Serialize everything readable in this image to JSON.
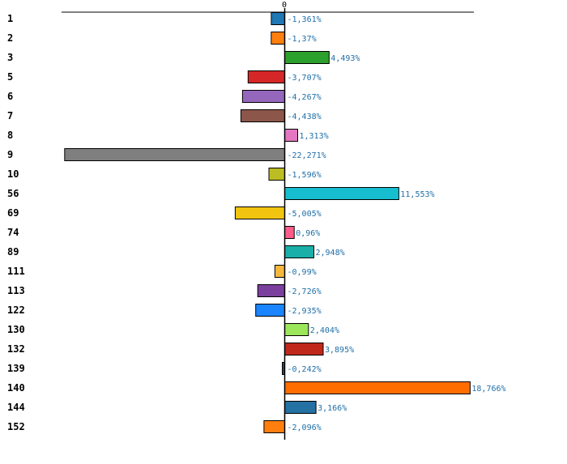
{
  "chart_data": {
    "type": "bar",
    "orientation": "horizontal",
    "zero_tick_label": "0",
    "xlim": [
      -23.5,
      19.7
    ],
    "grid": false,
    "categories": [
      "1",
      "2",
      "3",
      "5",
      "6",
      "7",
      "8",
      "9",
      "10",
      "56",
      "69",
      "74",
      "89",
      "111",
      "113",
      "122",
      "130",
      "132",
      "139",
      "140",
      "144",
      "152"
    ],
    "values": [
      -1.361,
      -1.37,
      4.493,
      -3.707,
      -4.267,
      -4.438,
      1.313,
      -22.271,
      -1.596,
      11.553,
      -5.005,
      0.96,
      2.948,
      -0.99,
      -2.726,
      -2.935,
      2.404,
      3.895,
      -0.242,
      18.766,
      3.166,
      -2.096
    ],
    "value_labels": [
      "-1,361%",
      "-1,37%",
      "4,493%",
      "-3,707%",
      "-4,267%",
      "-4,438%",
      "1,313%",
      "-22,271%",
      "-1,596%",
      "11,553%",
      "-5,005%",
      "0,96%",
      "2,948%",
      "-0,99%",
      "-2,726%",
      "-2,935%",
      "2,404%",
      "3,895%",
      "-0,242%",
      "18,766%",
      "3,166%",
      "-2,096%"
    ],
    "colors": [
      "#1f77b4",
      "#ff7f0e",
      "#2ca02c",
      "#d62728",
      "#9467bd",
      "#8c564b",
      "#e377c2",
      "#7f7f7f",
      "#bcbd22",
      "#17becf",
      "#f1c40f",
      "#ff5c8a",
      "#1aafa8",
      "#f5b83d",
      "#7b3f9e",
      "#1a85ff",
      "#9be65a",
      "#c0281c",
      "#34495e",
      "#ff6d00",
      "#2471a3",
      "#ff7f0e"
    ]
  }
}
